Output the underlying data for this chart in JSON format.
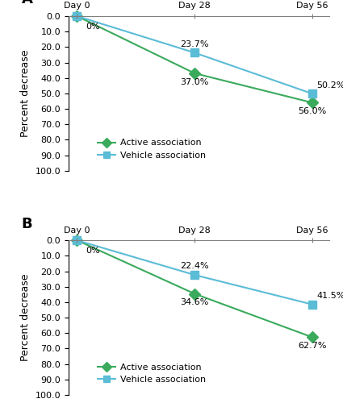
{
  "panel_A": {
    "label": "A",
    "x": [
      0,
      28,
      56
    ],
    "active": [
      0,
      37.0,
      56.0
    ],
    "vehicle": [
      0,
      23.7,
      50.2
    ],
    "active_labels": [
      "0%",
      "37.0%",
      "56.0%"
    ],
    "vehicle_labels": [
      "",
      "23.7%",
      "50.2%"
    ],
    "active_color": "#3aaa5c",
    "vehicle_color": "#5bbcd6",
    "ylabel": "Percent decrease"
  },
  "panel_B": {
    "label": "B",
    "x": [
      0,
      28,
      56
    ],
    "active": [
      0,
      34.6,
      62.7
    ],
    "vehicle": [
      0,
      22.4,
      41.5
    ],
    "active_labels": [
      "0%",
      "34.6%",
      "62.7%"
    ],
    "vehicle_labels": [
      "",
      "22.4%",
      "41.5%"
    ],
    "active_color": "#3aaa5c",
    "vehicle_color": "#5bbcd6",
    "ylabel": "Percent decrease"
  },
  "ylim": [
    0,
    100
  ],
  "yticks": [
    0,
    10,
    20,
    30,
    40,
    50,
    60,
    70,
    80,
    90,
    100
  ],
  "ytick_labels": [
    "0.0",
    "10.0",
    "20.0",
    "30.0",
    "40.0",
    "50.0",
    "60.0",
    "70.0",
    "80.0",
    "90.0",
    "100.0"
  ],
  "x_positions": [
    0,
    28,
    56
  ],
  "xtick_labels": [
    "Day 0",
    "Day 28",
    "Day 56"
  ],
  "legend_active": "Active association",
  "legend_vehicle": "Vehicle association",
  "active_color": "#3aaa5c",
  "vehicle_color": "#5bbcd6",
  "figsize": [
    4.25,
    5.0
  ],
  "dpi": 100
}
